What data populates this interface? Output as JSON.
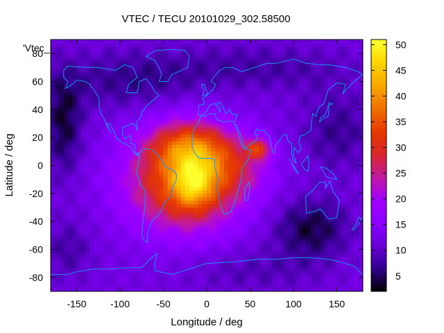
{
  "chart_data": {
    "type": "heatmap",
    "title": "VTEC / TECU 20101029_302.58500",
    "key_label": "'Vtec_",
    "xlabel": "Longitude / deg",
    "ylabel": "Latitude / deg",
    "xlim": [
      -180,
      180
    ],
    "ylim": [
      -90,
      90
    ],
    "x_ticks": [
      -150,
      -100,
      -50,
      0,
      50,
      100,
      150
    ],
    "y_ticks": [
      -80,
      -60,
      -40,
      -20,
      0,
      20,
      40,
      60,
      80
    ],
    "x_tick_labels": [
      "-150",
      "-100",
      "-50",
      "0",
      "50",
      "100",
      "150"
    ],
    "y_tick_labels": [
      "-80",
      "-60",
      "-40",
      "-20",
      "0",
      "20",
      "40",
      "60",
      "80"
    ],
    "colorbar": {
      "range": [
        2,
        51
      ],
      "ticks": [
        5,
        10,
        15,
        20,
        25,
        30,
        35,
        40,
        45,
        50
      ],
      "tick_labels": [
        "5",
        "10",
        "15",
        "20",
        "25",
        "30",
        "35",
        "40",
        "45",
        "50"
      ],
      "palette": [
        "#000000",
        "#30008a",
        "#6a00d8",
        "#8a00ff",
        "#a000ff",
        "#c01aa0",
        "#d8262a",
        "#e63a00",
        "#f07000",
        "#f8a800",
        "#fcd400",
        "#ffff30"
      ]
    },
    "field": {
      "background_tecu": 12,
      "blobs": [
        {
          "lon": -25,
          "lat": -10,
          "sigma_lon": 45,
          "sigma_lat": 25,
          "amplitude": 26
        },
        {
          "lon": -20,
          "lat": 15,
          "sigma_lon": 30,
          "sigma_lat": 12,
          "amplitude": 12
        },
        {
          "lon": -15,
          "lat": -12,
          "sigma_lon": 15,
          "sigma_lat": 12,
          "amplitude": 12
        },
        {
          "lon": 60,
          "lat": 12,
          "sigma_lon": 10,
          "sigma_lat": 5,
          "amplitude": 15
        },
        {
          "lon": 30,
          "lat": 0,
          "sigma_lon": 30,
          "sigma_lat": 15,
          "amplitude": 8
        },
        {
          "lon": -165,
          "lat": 30,
          "sigma_lon": 15,
          "sigma_lat": 25,
          "amplitude": -8
        },
        {
          "lon": 120,
          "lat": -45,
          "sigma_lon": 30,
          "sigma_lat": 15,
          "amplitude": -8
        },
        {
          "lon": 150,
          "lat": 25,
          "sigma_lon": 30,
          "sigma_lat": 20,
          "amplitude": -5
        },
        {
          "lon": -90,
          "lat": 60,
          "sigma_lon": 60,
          "sigma_lat": 15,
          "amplitude": -5
        },
        {
          "lon": 60,
          "lat": 70,
          "sigma_lon": 80,
          "sigma_lat": 12,
          "amplitude": -4
        },
        {
          "lon": 50,
          "lat": -75,
          "sigma_lon": 60,
          "sigma_lat": 12,
          "amplitude": -3
        },
        {
          "lon": -160,
          "lat": -60,
          "sigma_lon": 20,
          "sigma_lat": 15,
          "amplitude": -4
        }
      ]
    },
    "coastline_color": "#1e90ff"
  }
}
